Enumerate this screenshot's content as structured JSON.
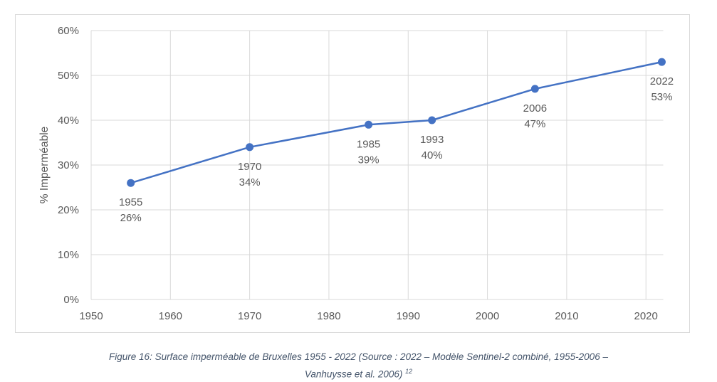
{
  "chart_data": {
    "type": "line",
    "title": "",
    "xlabel": "",
    "ylabel": "% Imperméable",
    "xlim": [
      1950,
      2022
    ],
    "ylim": [
      0,
      60
    ],
    "x_ticks": [
      "1950",
      "1960",
      "1970",
      "1980",
      "1990",
      "2000",
      "2010",
      "2020"
    ],
    "y_ticks": [
      "0%",
      "10%",
      "20%",
      "30%",
      "40%",
      "50%",
      "60%"
    ],
    "grid": true,
    "series": [
      {
        "color": "#4472c4",
        "points": [
          {
            "x": 1955,
            "y": 26,
            "label_year": "1955",
            "label_value": "26%"
          },
          {
            "x": 1970,
            "y": 34,
            "label_year": "1970",
            "label_value": "34%"
          },
          {
            "x": 1985,
            "y": 39,
            "label_year": "1985",
            "label_value": "39%"
          },
          {
            "x": 1993,
            "y": 40,
            "label_year": "1993",
            "label_value": "40%"
          },
          {
            "x": 2006,
            "y": 47,
            "label_year": "2006",
            "label_value": "47%"
          },
          {
            "x": 2022,
            "y": 53,
            "label_year": "2022",
            "label_value": "53%"
          }
        ]
      }
    ]
  },
  "caption": {
    "line1": "Figure 16: Surface imperméable de Bruxelles 1955 - 2022 (Source : 2022 – Modèle Sentinel-2 combiné, 1955-2006 –",
    "line2": "Vanhuysse et al. 2006)",
    "footnote": "12"
  }
}
